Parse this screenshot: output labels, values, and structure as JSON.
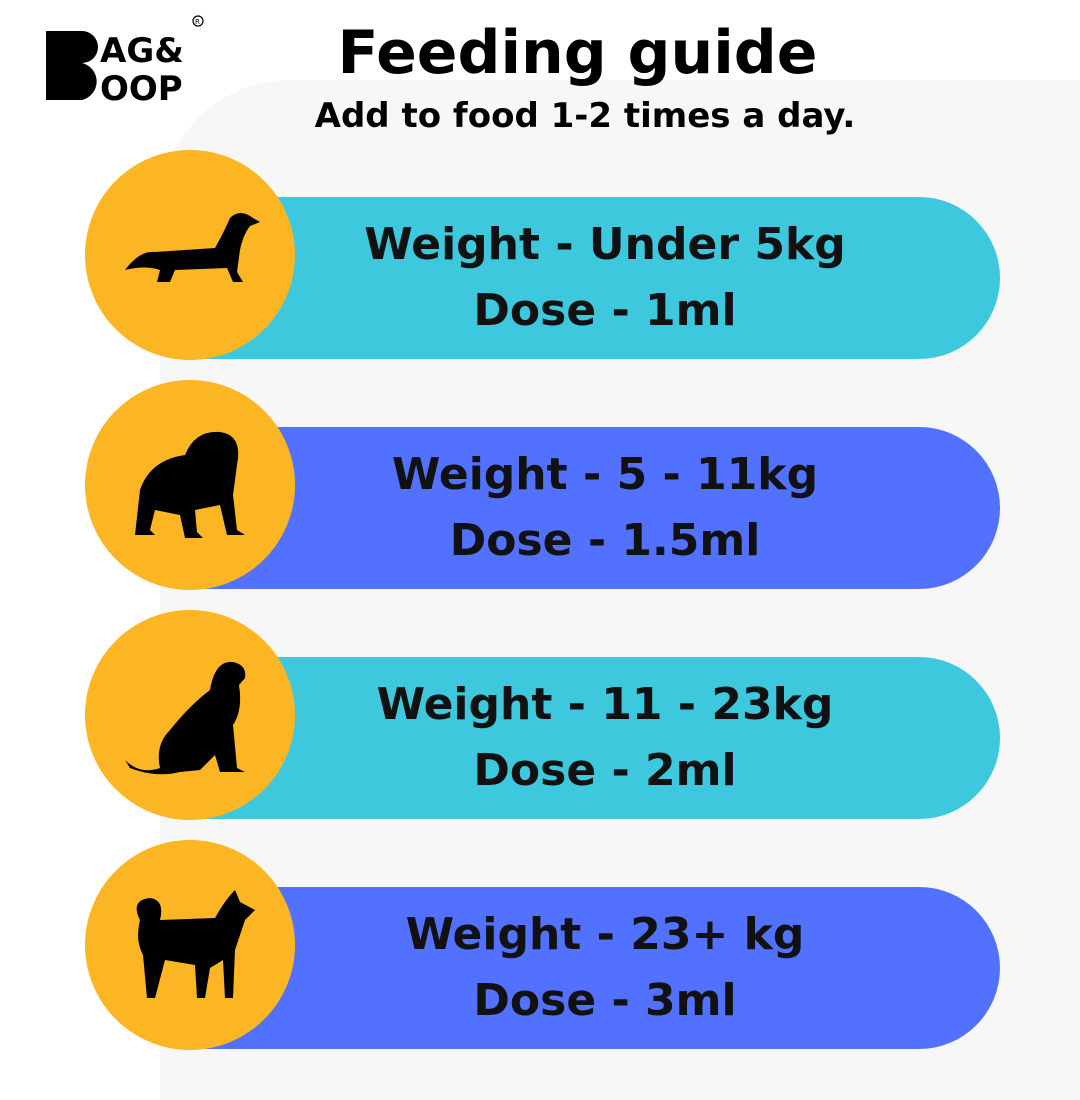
{
  "brand": {
    "logo_text": "BAG& BOOP",
    "registered": "®"
  },
  "header": {
    "title": "Feeding guide",
    "subtitle": "Add to food 1-2 times a day."
  },
  "colors": {
    "accent_yellow": "#fdb623",
    "cyan": "#3ec8de",
    "blue": "#5271ff",
    "panel": "#f7f7f7"
  },
  "rows": [
    {
      "icon": "dachshund-icon",
      "weight": "Weight - Under 5kg",
      "dose": "Dose - 1ml",
      "color": "#3ec8de"
    },
    {
      "icon": "bulldog-icon",
      "weight": "Weight - 5 - 11kg",
      "dose": "Dose - 1.5ml",
      "color": "#5271ff"
    },
    {
      "icon": "retriever-icon",
      "weight": "Weight - 11 - 23kg",
      "dose": "Dose - 2ml",
      "color": "#3ec8de"
    },
    {
      "icon": "husky-icon",
      "weight": "Weight - 23+ kg",
      "dose": "Dose - 3ml",
      "color": "#5271ff"
    }
  ]
}
